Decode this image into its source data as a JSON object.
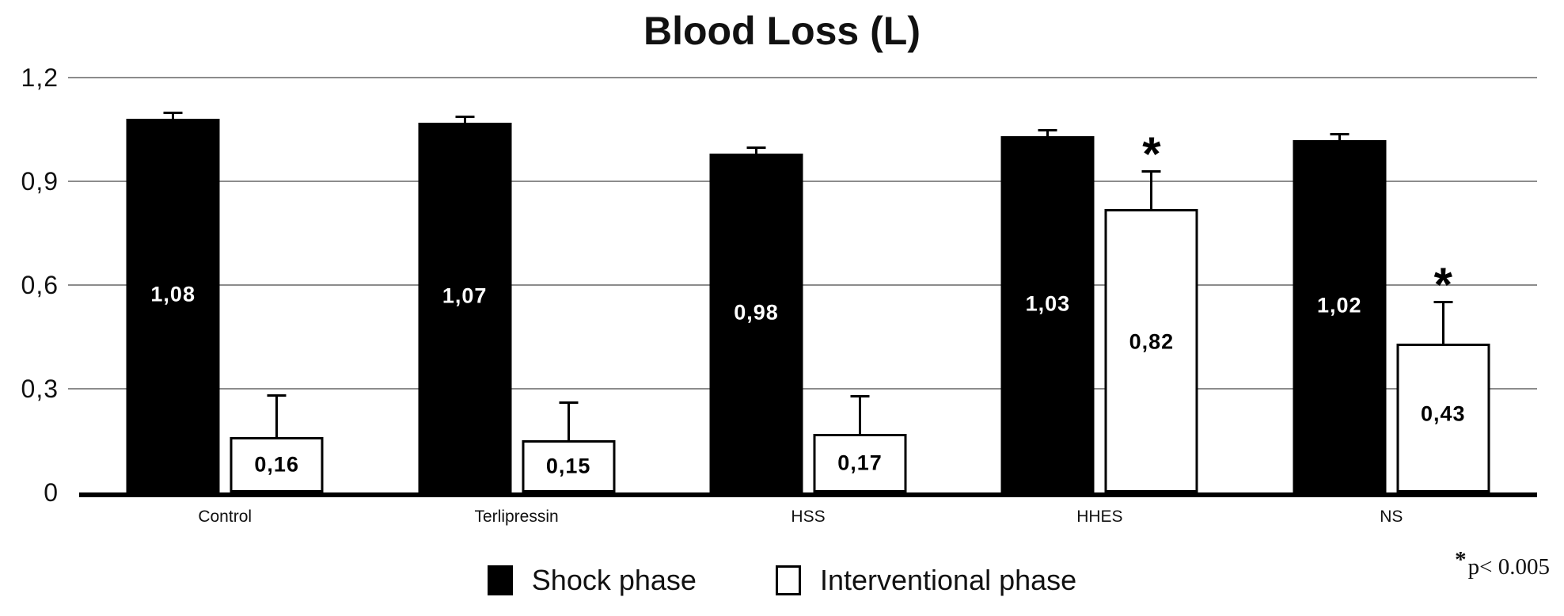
{
  "figure": {
    "note_star": "*",
    "note_text": "p< 0.005"
  },
  "colors": {
    "bar_shock": "#000000",
    "bar_interventional": "#ffffff",
    "gridline": "#8c8c8c",
    "axis": "#000000"
  },
  "chart_data": {
    "type": "bar",
    "title": "Blood Loss (L)",
    "categories": [
      "Control",
      "Terlipressin",
      "HSS",
      "HHES",
      "NS"
    ],
    "series": [
      {
        "name": "Shock phase",
        "fill": "#000000",
        "text_color": "#ffffff",
        "values": [
          1.08,
          1.07,
          0.98,
          1.03,
          1.02
        ],
        "value_labels": [
          "1,08",
          "1,07",
          "0,98",
          "1,03",
          "1,02"
        ],
        "error_top": [
          1.1,
          1.09,
          1.0,
          1.05,
          1.04
        ],
        "significant": [
          false,
          false,
          false,
          false,
          false
        ]
      },
      {
        "name": "Interventional phase",
        "fill": "#ffffff",
        "text_color": "#000000",
        "values": [
          0.16,
          0.15,
          0.17,
          0.82,
          0.43
        ],
        "value_labels": [
          "0,16",
          "0,15",
          "0,17",
          "0,82",
          "0,43"
        ],
        "error_top": [
          0.29,
          0.27,
          0.29,
          0.94,
          0.56
        ],
        "significant": [
          false,
          false,
          false,
          true,
          true
        ]
      }
    ],
    "ylim": [
      0,
      1.2
    ],
    "yticks": [
      {
        "value": 0,
        "label": "0"
      },
      {
        "value": 0.3,
        "label": "0,3"
      },
      {
        "value": 0.6,
        "label": "0,6"
      },
      {
        "value": 0.9,
        "label": "0,9"
      },
      {
        "value": 1.2,
        "label": "1,2"
      }
    ],
    "grid": true,
    "legend_position": "bottom",
    "significance_marker": "*",
    "annotation": "*p< 0.005"
  }
}
